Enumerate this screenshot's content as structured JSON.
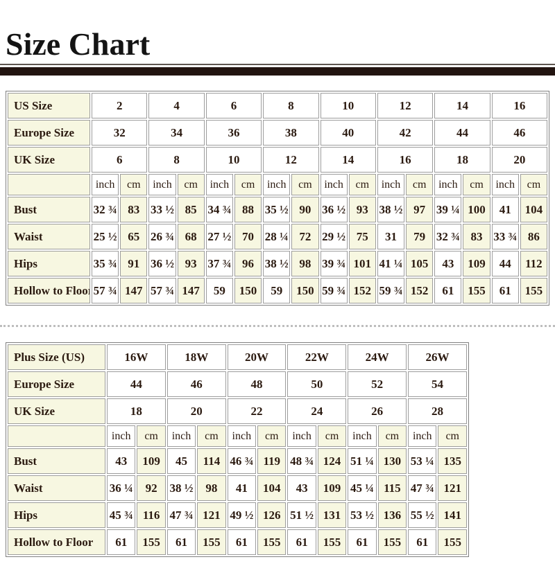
{
  "title": "Size Chart",
  "colors": {
    "cream_cell": "#f7f7e1",
    "grid_border": "#9c9c9c",
    "text": "#2b1a10",
    "title_rule": "#221410"
  },
  "units": {
    "inch": "inch",
    "cm": "cm"
  },
  "tables": [
    {
      "name": "standard-size-table",
      "size_rows": [
        {
          "label": "US Size",
          "values": [
            "2",
            "4",
            "6",
            "8",
            "10",
            "12",
            "14",
            "16"
          ]
        },
        {
          "label": "Europe Size",
          "values": [
            "32",
            "34",
            "36",
            "38",
            "40",
            "42",
            "44",
            "46"
          ]
        },
        {
          "label": "UK Size",
          "values": [
            "6",
            "8",
            "10",
            "12",
            "14",
            "16",
            "18",
            "20"
          ]
        }
      ],
      "measure_rows": [
        {
          "label": "Bust",
          "pairs": [
            [
              "32 ¾",
              "83"
            ],
            [
              "33 ½",
              "85"
            ],
            [
              "34 ¾",
              "88"
            ],
            [
              "35 ½",
              "90"
            ],
            [
              "36 ½",
              "93"
            ],
            [
              "38 ½",
              "97"
            ],
            [
              "39 ¼",
              "100"
            ],
            [
              "41",
              "104"
            ]
          ]
        },
        {
          "label": "Waist",
          "pairs": [
            [
              "25 ½",
              "65"
            ],
            [
              "26 ¾",
              "68"
            ],
            [
              "27 ½",
              "70"
            ],
            [
              "28 ¼",
              "72"
            ],
            [
              "29 ½",
              "75"
            ],
            [
              "31",
              "79"
            ],
            [
              "32 ¾",
              "83"
            ],
            [
              "33 ¾",
              "86"
            ]
          ]
        },
        {
          "label": "Hips",
          "pairs": [
            [
              "35 ¾",
              "91"
            ],
            [
              "36 ½",
              "93"
            ],
            [
              "37 ¾",
              "96"
            ],
            [
              "38 ½",
              "98"
            ],
            [
              "39 ¾",
              "101"
            ],
            [
              "41 ¼",
              "105"
            ],
            [
              "43",
              "109"
            ],
            [
              "44",
              "112"
            ]
          ]
        },
        {
          "label": "Hollow to Floor",
          "pairs": [
            [
              "57 ¾",
              "147"
            ],
            [
              "57 ¾",
              "147"
            ],
            [
              "59",
              "150"
            ],
            [
              "59",
              "150"
            ],
            [
              "59 ¾",
              "152"
            ],
            [
              "59 ¾",
              "152"
            ],
            [
              "61",
              "155"
            ],
            [
              "61",
              "155"
            ]
          ]
        }
      ]
    },
    {
      "name": "plus-size-table",
      "size_rows": [
        {
          "label": "Plus Size (US)",
          "values": [
            "16W",
            "18W",
            "20W",
            "22W",
            "24W",
            "26W"
          ]
        },
        {
          "label": "Europe Size",
          "values": [
            "44",
            "46",
            "48",
            "50",
            "52",
            "54"
          ]
        },
        {
          "label": "UK Size",
          "values": [
            "18",
            "20",
            "22",
            "24",
            "26",
            "28"
          ]
        }
      ],
      "measure_rows": [
        {
          "label": "Bust",
          "pairs": [
            [
              "43",
              "109"
            ],
            [
              "45",
              "114"
            ],
            [
              "46 ¾",
              "119"
            ],
            [
              "48 ¾",
              "124"
            ],
            [
              "51 ¼",
              "130"
            ],
            [
              "53 ¼",
              "135"
            ]
          ]
        },
        {
          "label": "Waist",
          "pairs": [
            [
              "36 ¼",
              "92"
            ],
            [
              "38 ½",
              "98"
            ],
            [
              "41",
              "104"
            ],
            [
              "43",
              "109"
            ],
            [
              "45 ¼",
              "115"
            ],
            [
              "47 ¾",
              "121"
            ]
          ]
        },
        {
          "label": "Hips",
          "pairs": [
            [
              "45 ¾",
              "116"
            ],
            [
              "47 ¾",
              "121"
            ],
            [
              "49 ½",
              "126"
            ],
            [
              "51 ½",
              "131"
            ],
            [
              "53 ½",
              "136"
            ],
            [
              "55 ½",
              "141"
            ]
          ]
        },
        {
          "label": "Hollow to Floor",
          "pairs": [
            [
              "61",
              "155"
            ],
            [
              "61",
              "155"
            ],
            [
              "61",
              "155"
            ],
            [
              "61",
              "155"
            ],
            [
              "61",
              "155"
            ],
            [
              "61",
              "155"
            ]
          ]
        }
      ]
    }
  ]
}
